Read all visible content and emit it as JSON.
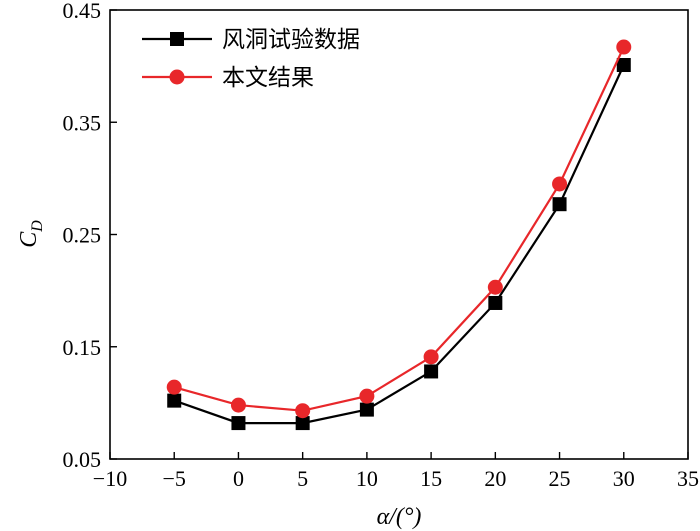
{
  "chart_data": {
    "type": "line",
    "xlabel": "α/(°)",
    "ylabel": "C_D",
    "ylabel_main": "C",
    "ylabel_sub": "D",
    "xlim": [
      -10,
      35
    ],
    "ylim": [
      0.05,
      0.45
    ],
    "x_ticks": [
      -10,
      -5,
      0,
      5,
      10,
      15,
      20,
      25,
      30,
      35
    ],
    "x_tick_labels": [
      "−10",
      "−5",
      "0",
      "5",
      "10",
      "15",
      "20",
      "25",
      "30",
      "35"
    ],
    "y_ticks": [
      0.05,
      0.15,
      0.25,
      0.35,
      0.45
    ],
    "y_tick_labels": [
      "0.05",
      "0.15",
      "0.25",
      "0.35",
      "0.45"
    ],
    "grid": false,
    "legend_position": "top-left",
    "x": [
      -5,
      0,
      5,
      10,
      15,
      20,
      25,
      30
    ],
    "series": [
      {
        "name": "风洞试验数据",
        "marker": "square",
        "color": "#000000",
        "values": [
          0.102,
          0.082,
          0.082,
          0.094,
          0.128,
          0.189,
          0.277,
          0.401
        ]
      },
      {
        "name": "本文结果",
        "marker": "circle",
        "color": "#e8272a",
        "values": [
          0.114,
          0.098,
          0.093,
          0.106,
          0.141,
          0.203,
          0.295,
          0.417
        ]
      }
    ]
  }
}
